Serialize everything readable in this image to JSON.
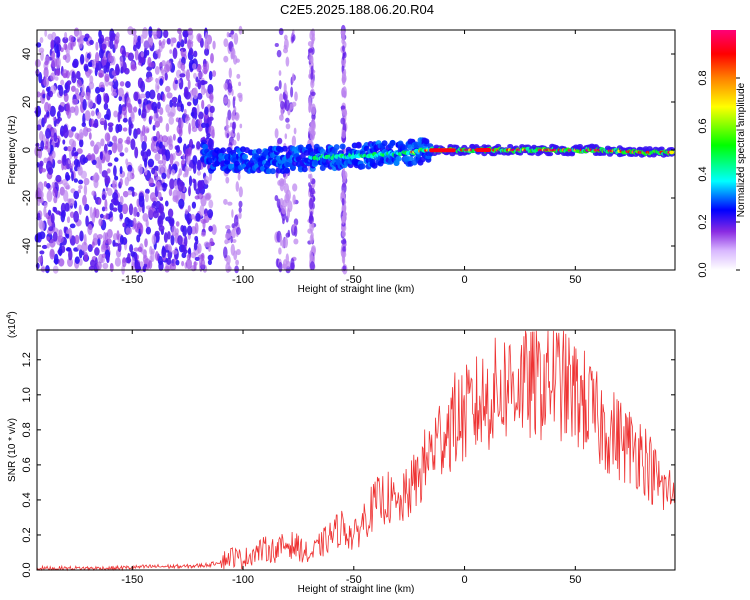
{
  "title": "C2E5.2025.188.06.20.R04",
  "chart_data": [
    {
      "type": "heatmap",
      "xlabel": "Height of straight line (km)",
      "ylabel": "Frequency (Hz)",
      "xlim": [
        -193,
        95
      ],
      "ylim": [
        -50,
        50
      ],
      "xticks": [
        -150,
        -100,
        -50,
        0,
        50
      ],
      "yticks": [
        -40,
        -20,
        0,
        20,
        40
      ],
      "colorbar": {
        "label": "Normalized spectral amplitude",
        "range": [
          0.0,
          1.0
        ],
        "ticks": [
          "0.0",
          "0.2",
          "0.4",
          "0.6",
          "0.8"
        ],
        "colormap": [
          "#ffffff",
          "#8a2be2",
          "#0000ff",
          "#00ffff",
          "#00ff00",
          "#ffff00",
          "#ff8000",
          "#ff0000",
          "#ff0066"
        ]
      },
      "features": {
        "noise_region_km": [
          -193,
          -113
        ],
        "noise_stripes_km": [
          [
            -108,
            -101
          ],
          [
            -85,
            -76
          ],
          [
            -70,
            -68
          ],
          [
            -55,
            -54
          ]
        ],
        "carrier_center_hz": [
          {
            "x": -115,
            "y": -5
          },
          {
            "x": -100,
            "y": -4
          },
          {
            "x": -80,
            "y": -4
          },
          {
            "x": -60,
            "y": -3
          },
          {
            "x": -40,
            "y": -2
          },
          {
            "x": -25,
            "y": -1
          },
          {
            "x": -15,
            "y": 0
          },
          {
            "x": 0,
            "y": 0
          },
          {
            "x": 20,
            "y": 0
          },
          {
            "x": 40,
            "y": 0
          },
          {
            "x": 60,
            "y": 0
          },
          {
            "x": 80,
            "y": -1
          },
          {
            "x": 95,
            "y": -1
          }
        ]
      }
    },
    {
      "type": "line",
      "xlabel": "Height of straight line (km)",
      "ylabel": "SNR (10 * v/v)",
      "yscale_label": "(x10",
      "yscale_exp": "4",
      "ylabel_suffix": ")",
      "xlim": [
        -193,
        95
      ],
      "ylim": [
        0,
        1.37
      ],
      "xticks": [
        -150,
        -100,
        -50,
        0,
        50
      ],
      "yticks": [
        "0.0",
        "0.2",
        "0.4",
        "0.6",
        "0.8",
        "1.0",
        "1.2"
      ],
      "color": "#ee3333",
      "series": [
        {
          "x": [
            -193,
            -180,
            -160,
            -140,
            -125,
            -115,
            -110,
            -105,
            -100,
            -95,
            -90,
            -85,
            -80,
            -75,
            -70,
            -65,
            -60,
            -55,
            -50,
            -45,
            -40,
            -35,
            -30,
            -25,
            -20,
            -15,
            -10,
            -5,
            0,
            5,
            10,
            15,
            20,
            25,
            30,
            35,
            40,
            45,
            50,
            55,
            60,
            65,
            70,
            75,
            80,
            85,
            90,
            95
          ],
          "y": [
            0.01,
            0.01,
            0.01,
            0.02,
            0.02,
            0.03,
            0.05,
            0.08,
            0.06,
            0.1,
            0.12,
            0.11,
            0.15,
            0.13,
            0.08,
            0.14,
            0.2,
            0.25,
            0.18,
            0.3,
            0.38,
            0.42,
            0.35,
            0.45,
            0.55,
            0.68,
            0.78,
            0.85,
            0.88,
            0.93,
            0.97,
            1.02,
            1.06,
            1.08,
            1.05,
            1.07,
            1.1,
            1.05,
            1.0,
            0.95,
            0.85,
            0.8,
            0.75,
            0.7,
            0.68,
            0.55,
            0.45,
            0.45
          ]
        }
      ]
    }
  ]
}
